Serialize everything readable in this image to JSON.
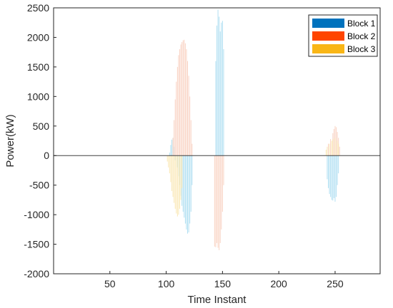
{
  "chart_data": {
    "type": "bar",
    "title": "",
    "xlabel": "Time Instant",
    "ylabel": "Power(kW)",
    "xlim": [
      0,
      290
    ],
    "ylim": [
      -2000,
      2500
    ],
    "xticks": [
      50,
      100,
      150,
      200,
      250
    ],
    "yticks": [
      -2000,
      -1500,
      -1000,
      -500,
      0,
      500,
      1000,
      1500,
      2000,
      2500
    ],
    "grid": false,
    "legend_position": "top-right",
    "series": [
      {
        "name": "Block 1",
        "legend_color": "#0072BD",
        "bar_color": "#9fd8ee",
        "points": [
          [
            103,
            50
          ],
          [
            104,
            180
          ],
          [
            105,
            270
          ],
          [
            106,
            300
          ],
          [
            107,
            150
          ],
          [
            108,
            -80
          ],
          [
            110,
            -200
          ],
          [
            111,
            -350
          ],
          [
            112,
            -500
          ],
          [
            113,
            -680
          ],
          [
            114,
            -850
          ],
          [
            115,
            -950
          ],
          [
            116,
            -1050
          ],
          [
            117,
            -1150
          ],
          [
            118,
            -1250
          ],
          [
            119,
            -1320
          ],
          [
            120,
            -1300
          ],
          [
            121,
            -1150
          ],
          [
            122,
            -950
          ],
          [
            123,
            -500
          ],
          [
            144,
            1600
          ],
          [
            145,
            2200
          ],
          [
            146,
            2470
          ],
          [
            147,
            2350
          ],
          [
            148,
            2100
          ],
          [
            149,
            2250
          ],
          [
            150,
            2280
          ],
          [
            151,
            1800
          ],
          [
            243,
            -400
          ],
          [
            244,
            -550
          ],
          [
            245,
            -650
          ],
          [
            246,
            -700
          ],
          [
            247,
            -750
          ],
          [
            248,
            -760
          ],
          [
            249,
            -720
          ],
          [
            250,
            -780
          ],
          [
            251,
            -700
          ],
          [
            252,
            -500
          ],
          [
            253,
            -300
          ]
        ]
      },
      {
        "name": "Block 2",
        "legend_color": "#FF4500",
        "bar_color": "#f8c9b6",
        "points": [
          [
            106,
            300
          ],
          [
            107,
            600
          ],
          [
            108,
            950
          ],
          [
            109,
            1250
          ],
          [
            110,
            1500
          ],
          [
            111,
            1700
          ],
          [
            112,
            1800
          ],
          [
            113,
            1880
          ],
          [
            114,
            1920
          ],
          [
            115,
            1950
          ],
          [
            116,
            1960
          ],
          [
            117,
            1900
          ],
          [
            118,
            1800
          ],
          [
            119,
            1600
          ],
          [
            120,
            1350
          ],
          [
            121,
            1000
          ],
          [
            122,
            600
          ],
          [
            123,
            200
          ],
          [
            143,
            -1540
          ],
          [
            144,
            -1550
          ],
          [
            145,
            -1480
          ],
          [
            146,
            -1560
          ],
          [
            147,
            -1600
          ],
          [
            148,
            -1480
          ],
          [
            149,
            -1250
          ],
          [
            150,
            -950
          ],
          [
            151,
            -500
          ],
          [
            244,
            200
          ],
          [
            246,
            280
          ],
          [
            248,
            380
          ],
          [
            249,
            450
          ],
          [
            250,
            500
          ],
          [
            251,
            480
          ],
          [
            252,
            400
          ],
          [
            253,
            300
          ],
          [
            254,
            150
          ]
        ]
      },
      {
        "name": "Block 3",
        "legend_color": "#F9B616",
        "bar_color": "#f9e3a6",
        "points": [
          [
            101,
            -100
          ],
          [
            102,
            -200
          ],
          [
            103,
            -300
          ],
          [
            104,
            -450
          ],
          [
            105,
            -600
          ],
          [
            106,
            -700
          ],
          [
            107,
            -800
          ],
          [
            108,
            -900
          ],
          [
            109,
            -980
          ],
          [
            110,
            -1030
          ],
          [
            111,
            -1000
          ],
          [
            112,
            -900
          ],
          [
            113,
            -750
          ],
          [
            114,
            -550
          ],
          [
            242,
            100
          ],
          [
            243,
            150
          ],
          [
            245,
            200
          ],
          [
            247,
            250
          ],
          [
            248,
            280
          ],
          [
            250,
            300
          ],
          [
            252,
            250
          ],
          [
            253,
            200
          ]
        ]
      }
    ]
  }
}
